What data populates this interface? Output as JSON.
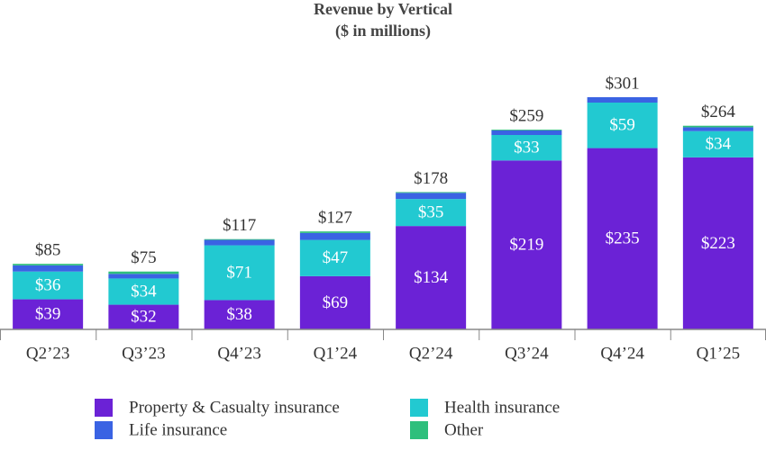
{
  "chart_data": {
    "type": "stacked_bar",
    "title": "Revenue by Vertical",
    "subtitle": "($ in millions)",
    "categories": [
      "Q2’23",
      "Q3’23",
      "Q4’23",
      "Q1’24",
      "Q2’24",
      "Q3’24",
      "Q4’24",
      "Q1’25"
    ],
    "series": [
      {
        "name": "Property & Casualty insurance",
        "color": "#6b22d6",
        "values": [
          39,
          32,
          38,
          69,
          134,
          219,
          235,
          223
        ],
        "value_labels": [
          "$39",
          "$32",
          "$38",
          "$69",
          "$134",
          "$219",
          "$235",
          "$223"
        ]
      },
      {
        "name": "Health insurance",
        "color": "#22c9d1",
        "values": [
          36,
          34,
          71,
          47,
          35,
          33,
          59,
          34
        ],
        "value_labels": [
          "$36",
          "$34",
          "$71",
          "$47",
          "$35",
          "$33",
          "$59",
          "$34"
        ]
      },
      {
        "name": "Life insurance",
        "color": "#3a63e3",
        "values": [
          8,
          6,
          7,
          9,
          8,
          6,
          7,
          5
        ]
      },
      {
        "name": "Other",
        "color": "#2ebf7c",
        "values": [
          2,
          3,
          1,
          2,
          1,
          1,
          0,
          2
        ]
      }
    ],
    "totals": [
      85,
      75,
      117,
      127,
      178,
      259,
      301,
      264
    ],
    "total_labels": [
      "$85",
      "$75",
      "$117",
      "$127",
      "$178",
      "$259",
      "$301",
      "$264"
    ],
    "ylim": [
      0,
      350
    ]
  }
}
